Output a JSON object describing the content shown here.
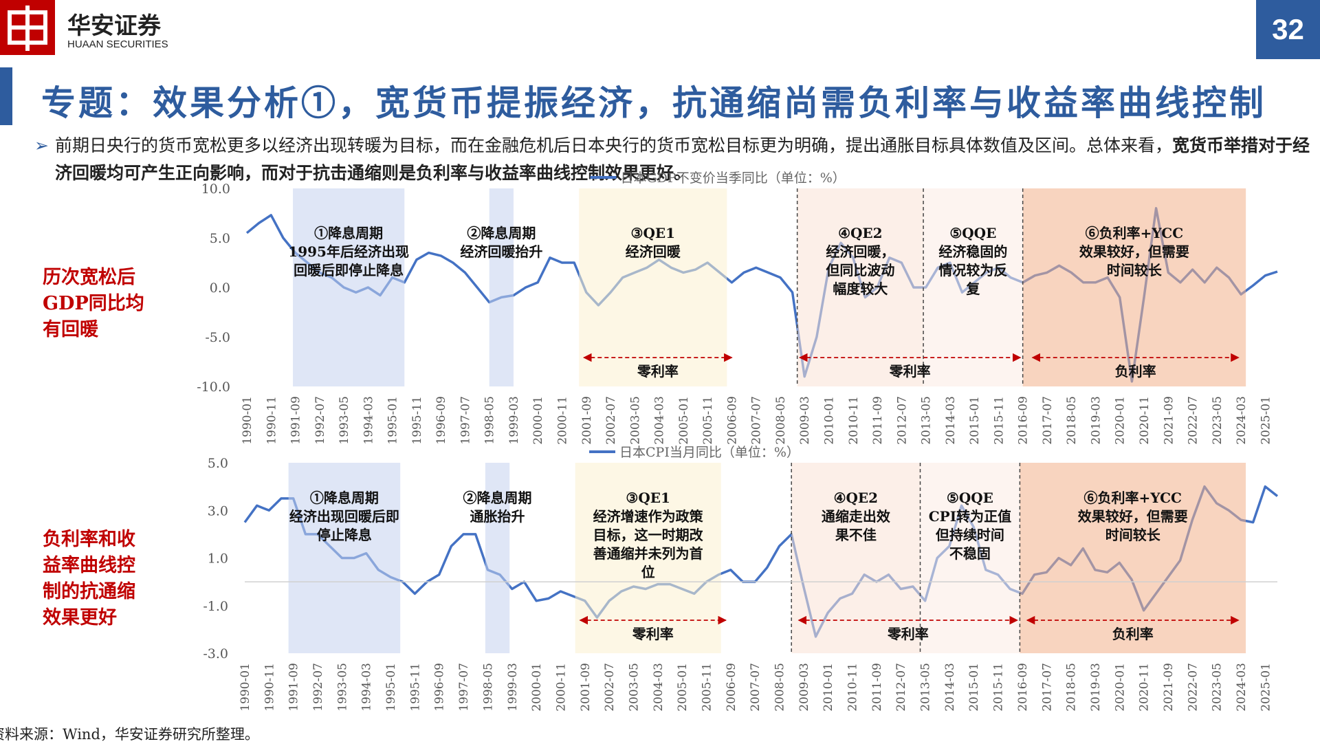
{
  "header": {
    "brand": "华安证券",
    "brand_en": "HUAAN SECURITIES",
    "page": "32"
  },
  "title": "专题：效果分析①，宽货币提振经济，抗通缩尚需负利率与收益率曲线控制",
  "bullet": {
    "text": "前期日央行的货币宽松更多以经济出现转暖为目标，而在金融危机后日本央行的货币宽松目标更为明确，提出通胀目标具体数值及区间。总体来看，",
    "bold": "宽货币举措对于经济回暖均可产生正向影响，而对于抗击通缩则是负利率与收益率曲线控制效果更好。"
  },
  "side_labels": [
    [
      "历次宽松后",
      "GDP同比均",
      "有回暖"
    ],
    [
      "负利率和收",
      "益率曲线控",
      "制的抗通缩",
      "效果更好"
    ]
  ],
  "source": "资料来源：Wind，华安证券研究所整理。",
  "chart_data": [
    {
      "type": "line",
      "zero_line": false,
      "x": [
        "1990-01",
        "1990-06",
        "1990-11",
        "1991-04",
        "1991-09",
        "1992-02",
        "1992-07",
        "1992-12",
        "1993-05",
        "1993-10",
        "1994-03",
        "1994-08",
        "1995-01",
        "1995-06",
        "1995-11",
        "1996-04",
        "1996-09",
        "1997-02",
        "1997-07",
        "1997-12",
        "1998-05",
        "1998-10",
        "1999-03",
        "1999-08",
        "2000-01",
        "2000-06",
        "2000-11",
        "2001-04",
        "2001-09",
        "2002-02",
        "2002-07",
        "2002-12",
        "2003-05",
        "2003-10",
        "2004-03",
        "2004-08",
        "2005-01",
        "2005-06",
        "2005-11",
        "2006-04",
        "2006-09",
        "2007-02",
        "2007-07",
        "2007-12",
        "2008-05",
        "2008-10",
        "2009-03",
        "2009-08",
        "2010-01",
        "2010-06",
        "2010-11",
        "2011-04",
        "2011-09",
        "2012-02",
        "2012-07",
        "2012-12",
        "2013-05",
        "2013-10",
        "2014-03",
        "2014-08",
        "2015-01",
        "2015-06",
        "2015-11",
        "2016-04",
        "2016-09",
        "2017-02",
        "2017-07",
        "2017-12",
        "2018-05",
        "2018-10",
        "2019-03",
        "2019-08",
        "2020-01",
        "2020-06",
        "2020-11",
        "2021-04",
        "2021-09",
        "2022-02",
        "2022-07",
        "2022-12",
        "2023-05",
        "2023-10",
        "2024-03",
        "2024-08",
        "2025-01",
        "2025-06"
      ],
      "xlim": [
        "1990-01",
        "2025-06"
      ],
      "xticks": [
        "1990-01",
        "1990-11",
        "1991-09",
        "1992-07",
        "1993-05",
        "1994-03",
        "1995-01",
        "1995-11",
        "1996-09",
        "1997-07",
        "1998-05",
        "1999-03",
        "2000-01",
        "2000-11",
        "2001-09",
        "2002-07",
        "2003-05",
        "2004-03",
        "2005-01",
        "2005-11",
        "2006-09",
        "2007-07",
        "2008-05",
        "2009-03",
        "2010-01",
        "2010-11",
        "2011-09",
        "2012-07",
        "2013-05",
        "2014-03",
        "2015-01",
        "2015-11",
        "2016-09",
        "2017-07",
        "2018-05",
        "2019-03",
        "2020-01",
        "2020-11",
        "2021-09",
        "2022-07",
        "2023-05",
        "2024-03",
        "2025-01"
      ],
      "ylim": [
        -10,
        10
      ],
      "yticks": [
        {
          "value": 10,
          "label": "10.0"
        },
        {
          "value": 5,
          "label": "5.0"
        },
        {
          "value": 0,
          "label": "0.0"
        },
        {
          "value": -5,
          "label": "-5.0"
        },
        {
          "value": -10,
          "label": "-10.0"
        }
      ],
      "series": [
        {
          "name": "日本GDP不变价当季同比（单位：%）",
          "color": "#4472c4",
          "values": [
            5.5,
            6.5,
            7.3,
            5,
            3.5,
            2.5,
            1.5,
            1,
            0,
            -0.5,
            0,
            -0.8,
            1,
            0.5,
            2.8,
            3.5,
            3.2,
            2.5,
            1.5,
            0,
            -1.5,
            -1,
            -0.8,
            0,
            0.5,
            3,
            2.5,
            2.5,
            -0.5,
            -1.8,
            -0.5,
            1,
            1.5,
            2,
            2.8,
            2,
            1.5,
            1.8,
            2.5,
            1.5,
            0.5,
            1.5,
            2,
            1.5,
            1,
            -0.5,
            -9,
            -5,
            2,
            4.5,
            3,
            -1,
            0,
            3,
            2.5,
            0,
            0,
            2,
            2.5,
            -0.5,
            0.5,
            1.5,
            2,
            1,
            0.5,
            1.2,
            1.5,
            2.2,
            1.5,
            0.5,
            0.5,
            1,
            -1,
            -9.5,
            -1,
            8,
            1.5,
            0.5,
            1.8,
            0.5,
            2,
            1,
            -0.7,
            0.2,
            1.2,
            1.6
          ]
        }
      ],
      "periods": [
        {
          "from": "1991-08",
          "to": "1995-06",
          "color": "#c5d2ee",
          "label": [
            "①降息周期",
            "1995年后经济出现",
            "回暖后即停止降息"
          ]
        },
        {
          "from": "1998-05",
          "to": "1999-03",
          "color": "#c5d2ee",
          "label": [
            "②降息周期",
            "经济回暖抬升"
          ]
        },
        {
          "from": "2001-06",
          "to": "2006-07",
          "color": "#fbf0d0",
          "label": [
            "③QE1",
            "经济回暖"
          ]
        },
        {
          "from": "2008-12",
          "to": "2013-04",
          "color": "#f9e1d6",
          "label": [
            "④QE2",
            "经济回暖，",
            "但同比波动",
            "幅度较大"
          ]
        },
        {
          "from": "2013-04",
          "to": "2016-09",
          "color": "#fcebe3",
          "label": [
            "⑤QQE",
            "经济稳固的",
            "情况较为反",
            "复"
          ]
        },
        {
          "from": "2016-09",
          "to": "2024-05",
          "color": "#f2b08a",
          "label": [
            "⑥负利率+YCC",
            "效果较好，但需要",
            "时间较长"
          ]
        }
      ],
      "vlines": [
        "2008-12",
        "2013-04",
        "2016-09"
      ],
      "spans": [
        {
          "from": "2001-08",
          "to": "2006-09",
          "label": "零利率"
        },
        {
          "from": "2009-01",
          "to": "2016-08",
          "label": "零利率"
        },
        {
          "from": "2017-01",
          "to": "2024-02",
          "label": "负利率"
        }
      ]
    },
    {
      "type": "line",
      "zero_line": true,
      "x": [
        "1990-01",
        "1990-06",
        "1990-11",
        "1991-04",
        "1991-09",
        "1992-02",
        "1992-07",
        "1992-12",
        "1993-05",
        "1993-10",
        "1994-03",
        "1994-08",
        "1995-01",
        "1995-06",
        "1995-11",
        "1996-04",
        "1996-09",
        "1997-02",
        "1997-07",
        "1997-12",
        "1998-05",
        "1998-10",
        "1999-03",
        "1999-08",
        "2000-01",
        "2000-06",
        "2000-11",
        "2001-04",
        "2001-09",
        "2002-02",
        "2002-07",
        "2002-12",
        "2003-05",
        "2003-10",
        "2004-03",
        "2004-08",
        "2005-01",
        "2005-06",
        "2005-11",
        "2006-04",
        "2006-09",
        "2007-02",
        "2007-07",
        "2007-12",
        "2008-05",
        "2008-10",
        "2009-03",
        "2009-08",
        "2010-01",
        "2010-06",
        "2010-11",
        "2011-04",
        "2011-09",
        "2012-02",
        "2012-07",
        "2012-12",
        "2013-05",
        "2013-10",
        "2014-03",
        "2014-08",
        "2015-01",
        "2015-06",
        "2015-11",
        "2016-04",
        "2016-09",
        "2017-02",
        "2017-07",
        "2017-12",
        "2018-05",
        "2018-10",
        "2019-03",
        "2019-08",
        "2020-01",
        "2020-06",
        "2020-11",
        "2021-04",
        "2021-09",
        "2022-02",
        "2022-07",
        "2022-12",
        "2023-05",
        "2023-10",
        "2024-03",
        "2024-08",
        "2025-01",
        "2025-06"
      ],
      "xlim": [
        "1990-01",
        "2025-06"
      ],
      "xticks": [
        "1990-01",
        "1990-11",
        "1991-09",
        "1992-07",
        "1993-05",
        "1994-03",
        "1995-01",
        "1995-11",
        "1996-09",
        "1997-07",
        "1998-05",
        "1999-03",
        "2000-01",
        "2000-11",
        "2001-09",
        "2002-07",
        "2003-05",
        "2004-03",
        "2005-01",
        "2005-11",
        "2006-09",
        "2007-07",
        "2008-05",
        "2009-03",
        "2010-01",
        "2010-11",
        "2011-09",
        "2012-07",
        "2013-05",
        "2014-03",
        "2015-01",
        "2015-11",
        "2016-09",
        "2017-07",
        "2018-05",
        "2019-03",
        "2020-01",
        "2020-11",
        "2021-09",
        "2022-07",
        "2023-05",
        "2024-03",
        "2025-01"
      ],
      "ylim": [
        -3,
        5
      ],
      "yticks": [
        {
          "value": 5,
          "label": "5.0"
        },
        {
          "value": 3,
          "label": "3.0"
        },
        {
          "value": 1,
          "label": "1.0"
        },
        {
          "value": -1,
          "label": "-1.0"
        },
        {
          "value": -3,
          "label": "-3.0"
        }
      ],
      "series": [
        {
          "name": "日本CPI当月同比（单位：%）",
          "color": "#4472c4",
          "values": [
            2.5,
            3.2,
            3,
            3.5,
            3.5,
            2,
            2,
            1.5,
            1,
            1,
            1.2,
            0.5,
            0.2,
            0,
            -0.5,
            0,
            0.3,
            1.5,
            2,
            2,
            0.5,
            0.3,
            -0.3,
            0,
            -0.8,
            -0.7,
            -0.4,
            -0.6,
            -0.8,
            -1.5,
            -0.8,
            -0.4,
            -0.2,
            -0.3,
            -0.1,
            -0.1,
            -0.3,
            -0.5,
            0,
            0.3,
            0.5,
            0,
            0,
            0.6,
            1.5,
            2,
            -0.2,
            -2.3,
            -1.3,
            -0.7,
            -0.5,
            0.3,
            0,
            0.3,
            -0.3,
            -0.2,
            -0.8,
            1,
            1.5,
            3.2,
            2.3,
            0.5,
            0.3,
            -0.3,
            -0.5,
            0.3,
            0.4,
            1,
            0.7,
            1.4,
            0.5,
            0.4,
            0.8,
            0.1,
            -1.2,
            -0.5,
            0.2,
            0.9,
            2.6,
            4,
            3.3,
            3,
            2.6,
            2.5,
            4,
            3.6
          ]
        }
      ],
      "periods": [
        {
          "from": "1991-07",
          "to": "1995-05",
          "color": "#c5d2ee",
          "label": [
            "①降息周期",
            "经济出现回暖后即",
            "停止降息"
          ]
        },
        {
          "from": "1998-04",
          "to": "1999-02",
          "color": "#c5d2ee",
          "label": [
            "②降息周期",
            "通胀抬升"
          ]
        },
        {
          "from": "2001-05",
          "to": "2006-05",
          "color": "#fbf0d0",
          "label": [
            "③QE1",
            "经济增速作为政策",
            "目标，这一时期改",
            "善通缩并未列为首",
            "位"
          ]
        },
        {
          "from": "2008-10",
          "to": "2013-03",
          "color": "#f9e1d6",
          "label": [
            "④QE2",
            "通缩走出效",
            "果不佳"
          ]
        },
        {
          "from": "2013-03",
          "to": "2016-08",
          "color": "#fcebe3",
          "label": [
            "⑤QQE",
            "CPI转为正值",
            "但持续时间",
            "不稳固"
          ]
        },
        {
          "from": "2016-08",
          "to": "2024-05",
          "color": "#f2b08a",
          "label": [
            "⑥负利率+YCC",
            "效果较好，但需要",
            "时间较长"
          ]
        }
      ],
      "vlines": [
        "2008-10",
        "2013-03",
        "2016-08"
      ],
      "spans": [
        {
          "from": "2001-07",
          "to": "2006-07",
          "label": "零利率"
        },
        {
          "from": "2009-01",
          "to": "2016-07",
          "label": "零利率"
        },
        {
          "from": "2016-11",
          "to": "2024-02",
          "label": "负利率"
        }
      ]
    }
  ]
}
